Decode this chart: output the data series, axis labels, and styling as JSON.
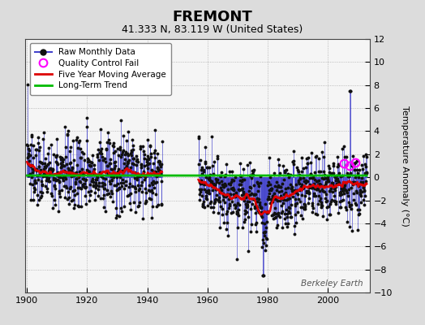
{
  "title": "FREMONT",
  "subtitle": "41.333 N, 83.119 W (United States)",
  "ylabel": "Temperature Anomaly (°C)",
  "watermark": "Berkeley Earth",
  "year_start": 1900,
  "year_end": 2013,
  "gap_start": 1945,
  "gap_end": 1957,
  "ylim": [
    -10,
    12
  ],
  "yticks": [
    -10,
    -8,
    -6,
    -4,
    -2,
    0,
    2,
    4,
    6,
    8,
    10,
    12
  ],
  "xticks": [
    1900,
    1920,
    1940,
    1960,
    1980,
    2000
  ],
  "bg_color": "#dcdcdc",
  "plot_bg_color": "#f5f5f5",
  "raw_line_color": "#4444cc",
  "raw_marker_color": "#111111",
  "qc_marker_color": "#ff00ff",
  "moving_avg_color": "#dd0000",
  "trend_color": "#00bb00",
  "seed": 137
}
